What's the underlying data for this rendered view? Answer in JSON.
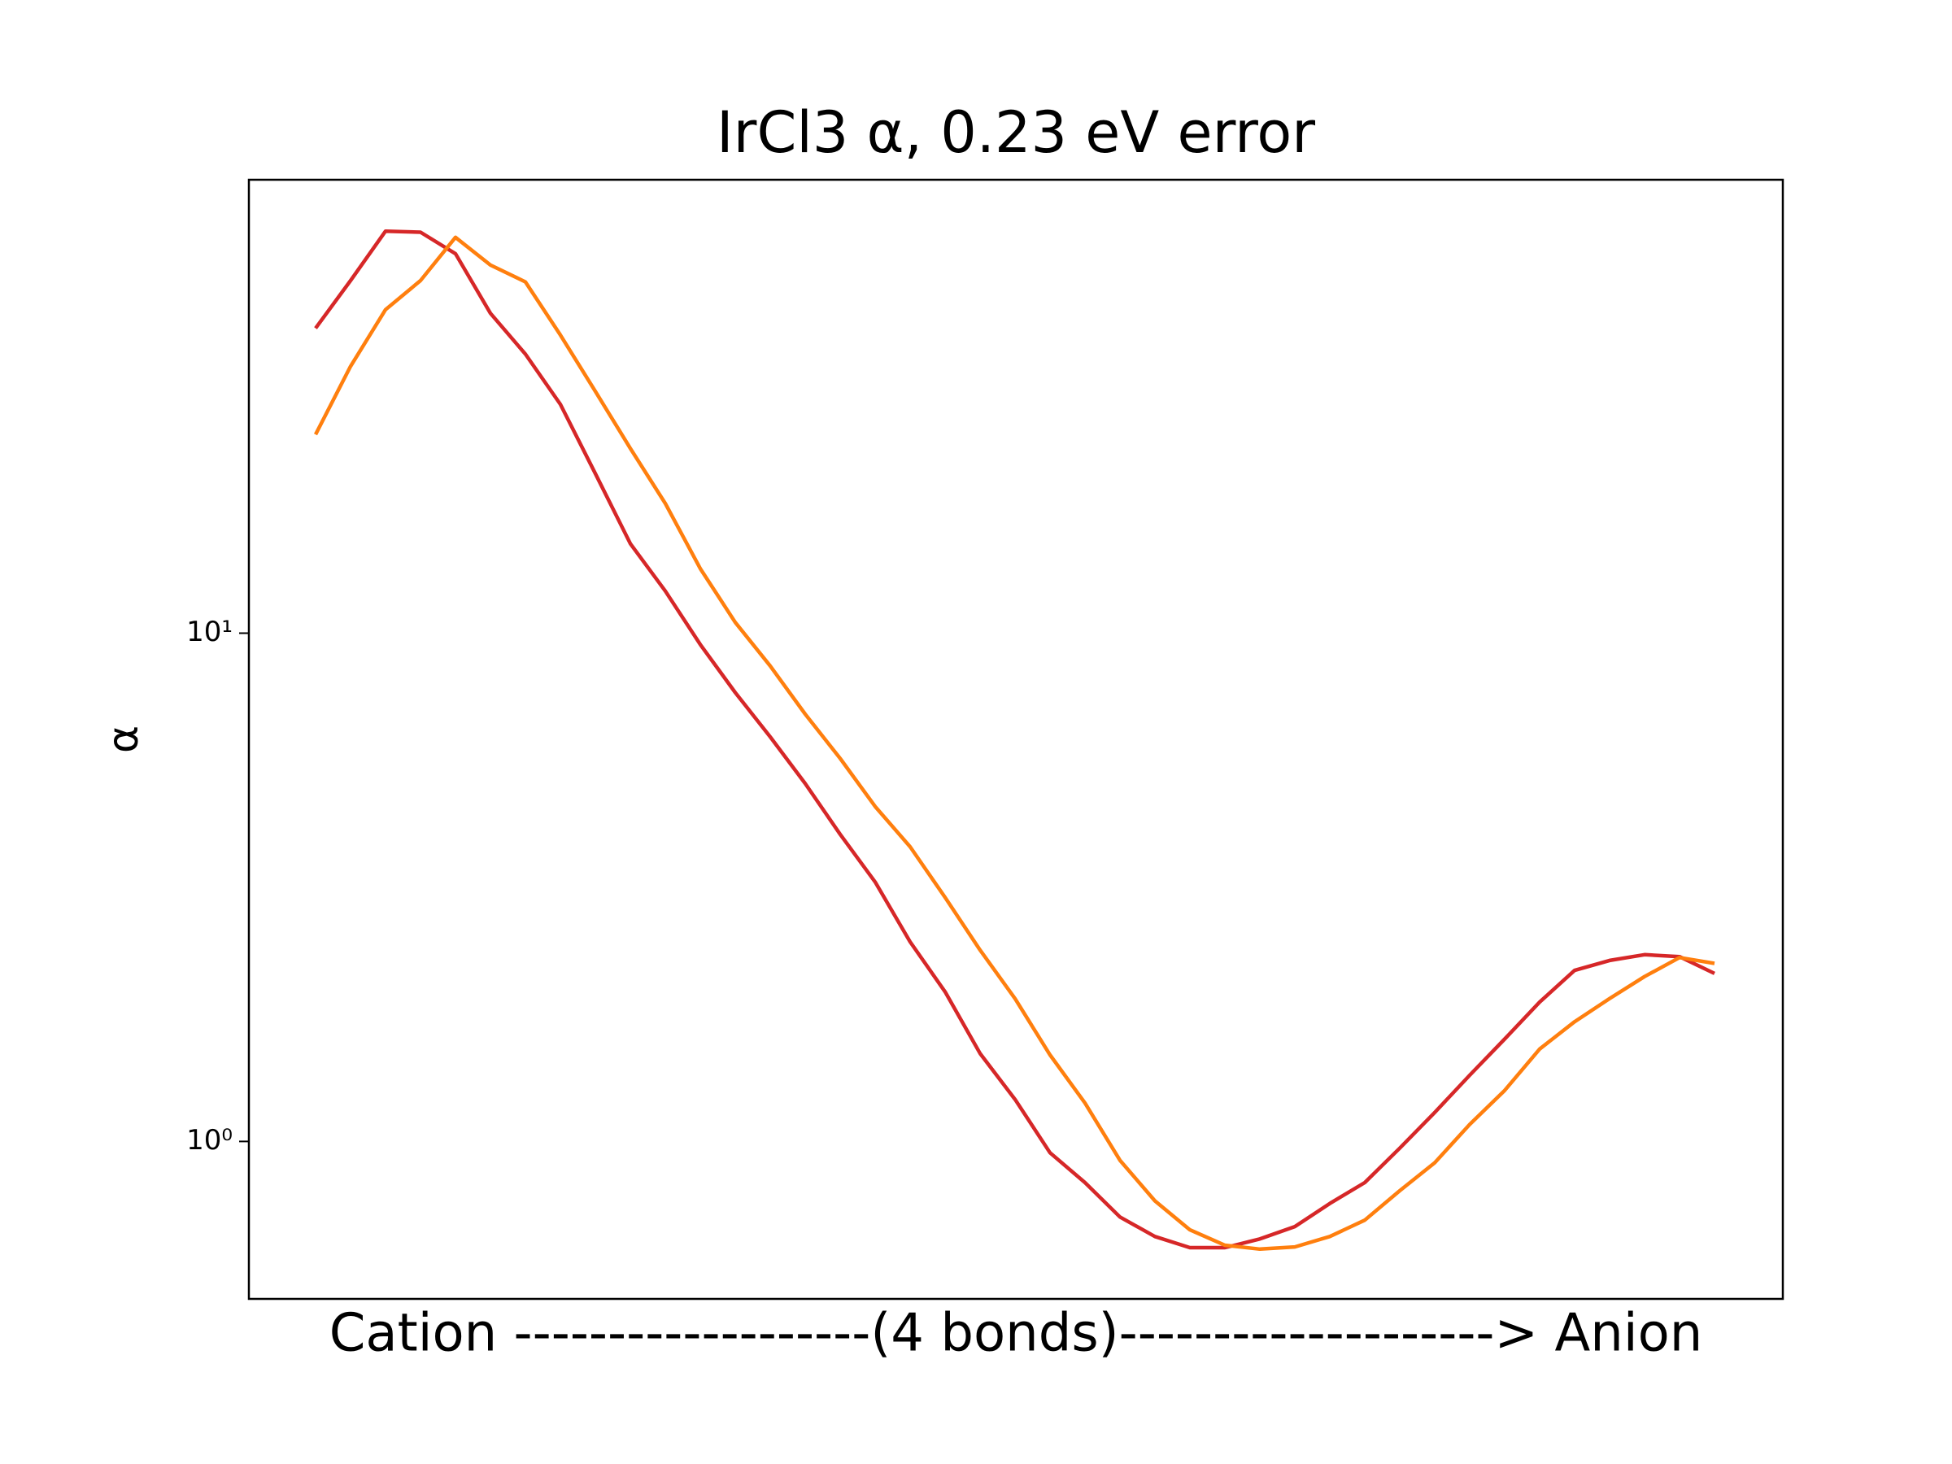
{
  "chart_data": {
    "type": "line",
    "title": "IrCl3 α, 0.23 eV error",
    "y_label": "α",
    "x_label": "Cation -------------------(4 bonds)--------------------> Anion",
    "log_y": true,
    "categories": [
      null,
      null,
      null,
      null,
      null,
      null,
      null,
      null,
      null,
      null,
      null,
      null,
      null,
      null,
      null,
      null,
      null,
      null,
      null,
      null,
      null,
      null,
      null,
      null,
      null,
      null,
      null,
      null,
      null,
      null,
      null,
      null,
      null,
      null,
      null,
      null,
      null,
      null,
      null,
      null,
      null
    ],
    "series": [
      {
        "color": "#d62728",
        "values": [
          39.8,
          49.4,
          61.8,
          61.5,
          55.8,
          42.6,
          35.4,
          28.2,
          20.6,
          15.0,
          12.1,
          9.5,
          7.64,
          6.25,
          5.06,
          4.02,
          3.24,
          2.47,
          1.97,
          1.49,
          1.21,
          0.95,
          0.83,
          0.71,
          0.65,
          0.618,
          0.618,
          0.643,
          0.68,
          0.755,
          0.83,
          0.97,
          1.14,
          1.35,
          1.59,
          1.88,
          2.17,
          2.27,
          2.33,
          2.31,
          2.14
        ]
      },
      {
        "color": "#ff7f0e",
        "values": [
          24.6,
          33.5,
          43.3,
          49.4,
          60.1,
          53.0,
          49.1,
          38.6,
          29.9,
          23.1,
          18.0,
          13.4,
          10.5,
          8.62,
          6.93,
          5.67,
          4.56,
          3.8,
          3.02,
          2.38,
          1.91,
          1.48,
          1.19,
          0.918,
          0.764,
          0.67,
          0.625,
          0.614,
          0.62,
          0.65,
          0.7,
          0.8,
          0.908,
          1.08,
          1.26,
          1.52,
          1.72,
          1.91,
          2.11,
          2.3,
          2.24
        ]
      }
    ],
    "ylim": [
      0.49,
      78
    ],
    "yticks": [
      {
        "value": 1,
        "label": "10⁰"
      },
      {
        "value": 10,
        "label": "10¹"
      }
    ]
  }
}
